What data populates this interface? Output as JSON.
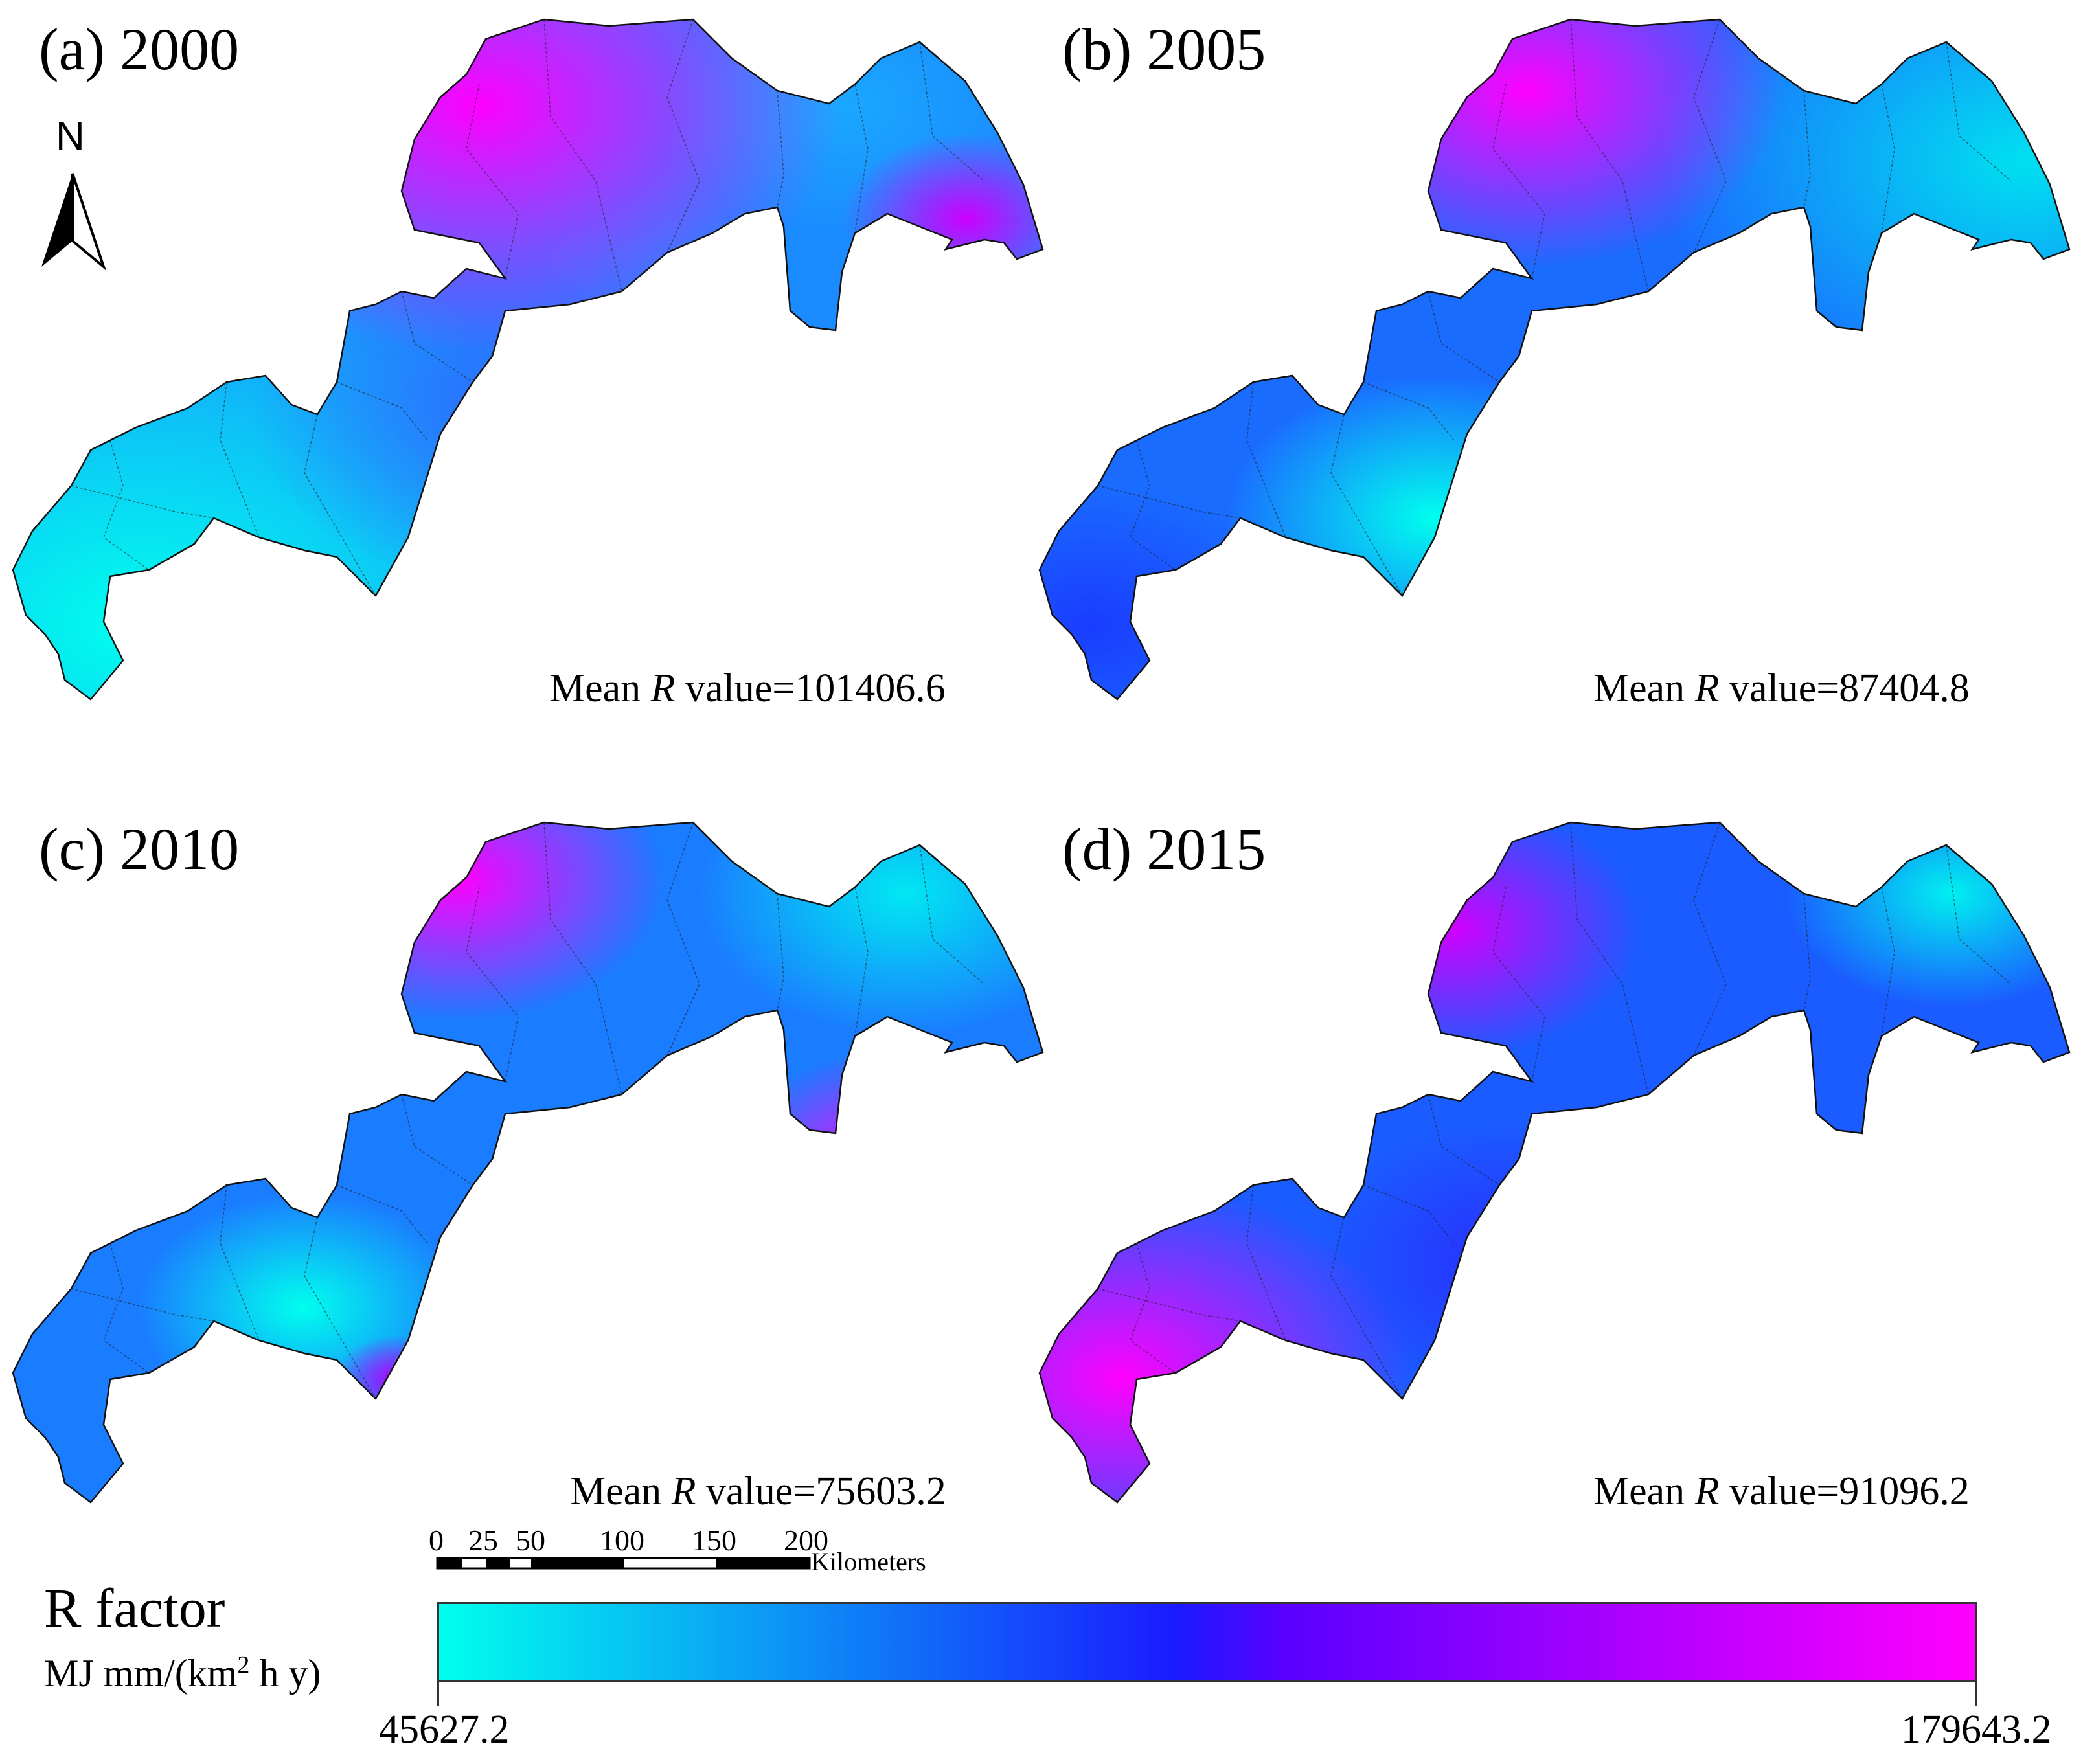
{
  "panels": [
    {
      "label": "(a) 2000",
      "mean_prefix": "Mean ",
      "mean_var": "R",
      "mean_suffix": " value=101406.6"
    },
    {
      "label": "(b) 2005",
      "mean_prefix": "Mean ",
      "mean_var": "R",
      "mean_suffix": " value=87404.8"
    },
    {
      "label": "(c) 2010",
      "mean_prefix": "Mean ",
      "mean_var": "R",
      "mean_suffix": " value=75603.2"
    },
    {
      "label": "(d) 2015",
      "mean_prefix": "Mean ",
      "mean_var": "R",
      "mean_suffix": " value=91096.2"
    }
  ],
  "north_arrow": {
    "label": "N",
    "icon": "north-arrow-icon"
  },
  "scale_bar": {
    "ticks": [
      "0",
      "25",
      "50",
      "100",
      "150",
      "200"
    ],
    "unit": "Kilometers"
  },
  "legend": {
    "title": "R factor",
    "unit_prefix": "MJ mm/(km",
    "unit_sup": "2",
    "unit_suffix": " h y)",
    "min": "45627.2",
    "max": "179643.2",
    "colors": {
      "low": "#00ffee",
      "mid": "#1a1aff",
      "high": "#ff00ff"
    }
  }
}
